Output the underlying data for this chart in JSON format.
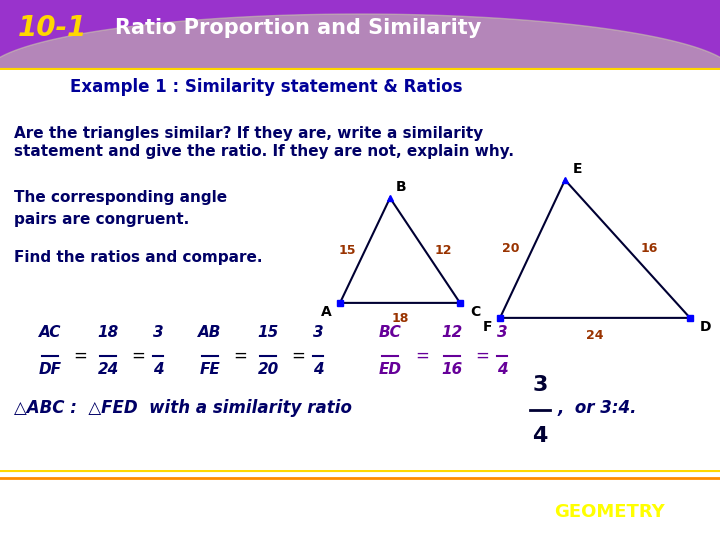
{
  "title_number": "10-1",
  "title_text": "Ratio Proportion and Similarity",
  "subtitle": "Example 1 : Similarity statement & Ratios",
  "header_bg": "#9933CC",
  "header_text_color": "#FFFF00",
  "subtitle_color": "#000099",
  "body_bg": "#FFFFFF",
  "footer_bg": "#9933CC",
  "footer_text": "GEOMETRY",
  "footer_text_color": "#FFFF00",
  "question_line1": "Are the triangles similar? If they are, write a similarity",
  "question_line2": "statement and give the ratio. If they are not, explain why.",
  "answer_line1": "The corresponding angle",
  "answer_line2": "pairs are congruent.",
  "find_text": "Find the ratios and compare.",
  "text_color": "#000066",
  "tri_edge_color": "#000033",
  "side_label_color": "#993300",
  "formula_color1": "#000066",
  "formula_color2": "#660099",
  "sim_text_color": "#000066",
  "ratio_frac_color": "#000033",
  "gold": "#FFD700",
  "orange_line": "#FF8C00"
}
